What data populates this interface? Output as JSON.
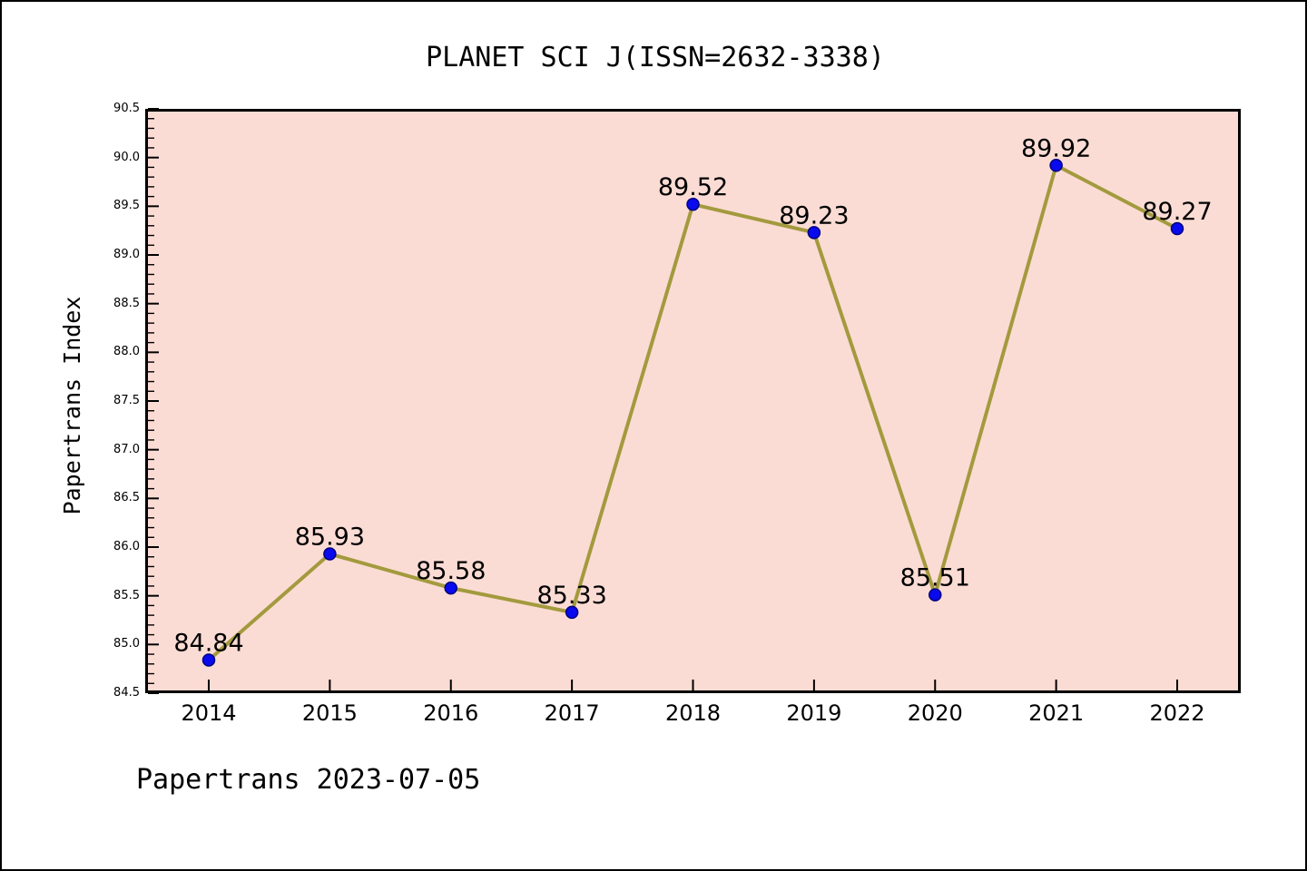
{
  "title": "PLANET SCI J(ISSN=2632-3338)",
  "footer": {
    "text": "Papertrans 2023-07-05"
  },
  "chart_data": {
    "type": "line",
    "title": "PLANET SCI J(ISSN=2632-3338)",
    "categories": [
      "2014",
      "2015",
      "2016",
      "2017",
      "2018",
      "2019",
      "2020",
      "2021",
      "2022"
    ],
    "values": [
      84.84,
      85.93,
      85.58,
      85.33,
      89.52,
      89.23,
      85.51,
      89.92,
      89.27
    ],
    "point_labels": [
      "84.84",
      "85.93",
      "85.58",
      "85.33",
      "89.52",
      "89.23",
      "85.51",
      "89.92",
      "89.27"
    ],
    "series_name": "Papertrans Index",
    "xlabel": "",
    "ylabel": "Papertrans Index",
    "ylim": [
      84.5,
      90.5
    ],
    "y_ticks": [
      "84.5",
      "85.0",
      "85.5",
      "86.0",
      "86.5",
      "87.0",
      "87.5",
      "88.0",
      "88.5",
      "89.0",
      "89.5",
      "90.0",
      "90.5"
    ],
    "y_minor_step": 0.1,
    "grid": false,
    "legend": null,
    "colors": {
      "line": "#A39A3E",
      "marker_fill": "#0A0AEE",
      "marker_edge": "#000080",
      "plot_background": "#FBDCD4",
      "axis": "#000000",
      "text": "#000000"
    }
  }
}
